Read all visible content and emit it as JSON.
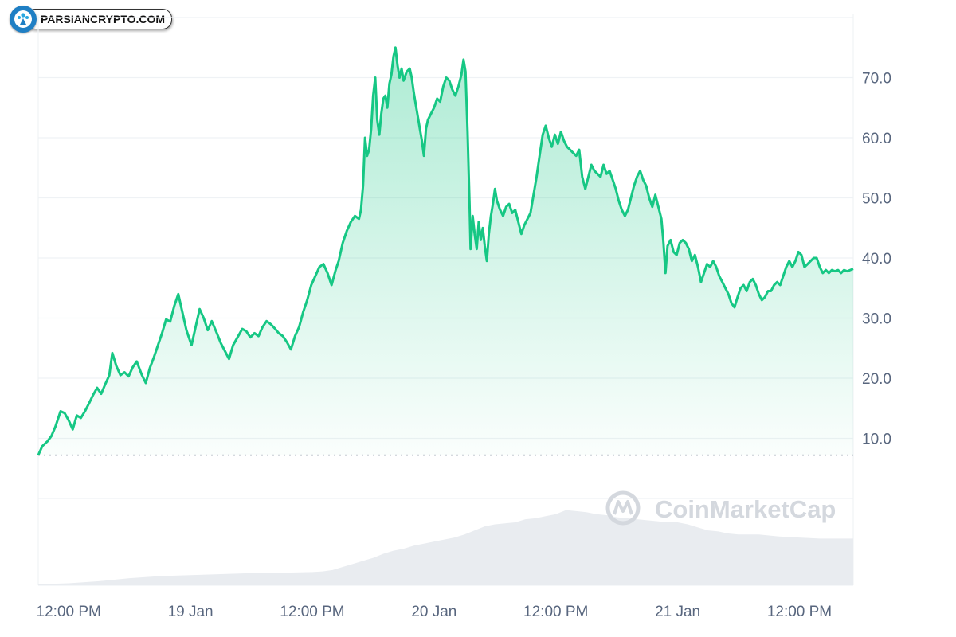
{
  "watermark": {
    "brand": "PARSIANCRYPTO.COM",
    "source": "CoinMarketCap"
  },
  "colors": {
    "line": "#16c784",
    "grid": "#eff2f5",
    "volume": "#e9ecf0",
    "baseline": "#909aa8",
    "text": "#58667e"
  },
  "chart_data": {
    "type": "area",
    "title": "",
    "xlabel": "",
    "ylabel": "",
    "ylim": [
      0,
      80
    ],
    "y_ticks": [
      "10.0",
      "20.0",
      "30.0",
      "40.0",
      "50.0",
      "60.0",
      "70.0"
    ],
    "x_ticks": [
      "12:00 PM",
      "19 Jan",
      "12:00 PM",
      "20 Jan",
      "12:00 PM",
      "21 Jan",
      "12:00 PM"
    ],
    "x_tick_hours": [
      12,
      24,
      36,
      48,
      60,
      72,
      84
    ],
    "x_range_hours": [
      9,
      89.3
    ],
    "baseline_value": 7.2,
    "grid": true,
    "series": [
      {
        "values": [
          [
            9.0,
            7.2
          ],
          [
            9.4,
            8.7
          ],
          [
            9.9,
            9.5
          ],
          [
            10.3,
            10.4
          ],
          [
            10.7,
            12.0
          ],
          [
            11.2,
            14.5
          ],
          [
            11.6,
            14.2
          ],
          [
            12.0,
            13.0
          ],
          [
            12.4,
            11.5
          ],
          [
            12.8,
            13.8
          ],
          [
            13.2,
            13.4
          ],
          [
            13.6,
            14.5
          ],
          [
            14.0,
            15.8
          ],
          [
            14.4,
            17.2
          ],
          [
            14.8,
            18.4
          ],
          [
            15.2,
            17.4
          ],
          [
            15.6,
            19.0
          ],
          [
            16.0,
            20.5
          ],
          [
            16.3,
            24.2
          ],
          [
            16.7,
            22.0
          ],
          [
            17.1,
            20.5
          ],
          [
            17.5,
            21.0
          ],
          [
            17.9,
            20.3
          ],
          [
            18.3,
            21.8
          ],
          [
            18.7,
            22.8
          ],
          [
            19.2,
            20.6
          ],
          [
            19.6,
            19.2
          ],
          [
            20.0,
            21.7
          ],
          [
            20.4,
            23.5
          ],
          [
            20.8,
            25.5
          ],
          [
            21.2,
            27.5
          ],
          [
            21.6,
            29.8
          ],
          [
            22.0,
            29.4
          ],
          [
            22.4,
            32.0
          ],
          [
            22.8,
            34.0
          ],
          [
            23.2,
            31.0
          ],
          [
            23.6,
            28.0
          ],
          [
            24.1,
            25.5
          ],
          [
            24.5,
            28.5
          ],
          [
            24.9,
            31.5
          ],
          [
            25.3,
            30.0
          ],
          [
            25.7,
            28.0
          ],
          [
            26.1,
            29.5
          ],
          [
            26.6,
            27.5
          ],
          [
            27.0,
            25.8
          ],
          [
            27.4,
            24.5
          ],
          [
            27.8,
            23.2
          ],
          [
            28.2,
            25.5
          ],
          [
            28.7,
            27.0
          ],
          [
            29.1,
            28.2
          ],
          [
            29.5,
            27.8
          ],
          [
            29.9,
            26.8
          ],
          [
            30.3,
            27.5
          ],
          [
            30.7,
            27.0
          ],
          [
            31.1,
            28.5
          ],
          [
            31.5,
            29.5
          ],
          [
            31.9,
            29.0
          ],
          [
            32.3,
            28.3
          ],
          [
            32.7,
            27.5
          ],
          [
            33.1,
            27.0
          ],
          [
            33.5,
            26.0
          ],
          [
            33.9,
            24.8
          ],
          [
            34.3,
            27.0
          ],
          [
            34.7,
            28.5
          ],
          [
            35.1,
            31.0
          ],
          [
            35.5,
            33.0
          ],
          [
            35.9,
            35.5
          ],
          [
            36.3,
            37.0
          ],
          [
            36.7,
            38.5
          ],
          [
            37.1,
            39.0
          ],
          [
            37.5,
            37.5
          ],
          [
            37.9,
            35.5
          ],
          [
            38.3,
            38.0
          ],
          [
            38.6,
            39.5
          ],
          [
            39.0,
            42.5
          ],
          [
            39.4,
            44.5
          ],
          [
            39.8,
            46.0
          ],
          [
            40.2,
            47.0
          ],
          [
            40.6,
            46.5
          ],
          [
            40.8,
            48.0
          ],
          [
            41.0,
            52.0
          ],
          [
            41.2,
            60.0
          ],
          [
            41.4,
            57.0
          ],
          [
            41.6,
            58.0
          ],
          [
            41.8,
            61.5
          ],
          [
            42.0,
            67.0
          ],
          [
            42.2,
            70.0
          ],
          [
            42.4,
            63.0
          ],
          [
            42.6,
            60.5
          ],
          [
            42.8,
            64.0
          ],
          [
            43.0,
            66.5
          ],
          [
            43.2,
            67.0
          ],
          [
            43.4,
            65.0
          ],
          [
            43.6,
            69.0
          ],
          [
            43.8,
            70.5
          ],
          [
            44.0,
            73.5
          ],
          [
            44.2,
            75.0
          ],
          [
            44.4,
            72.0
          ],
          [
            44.6,
            70.0
          ],
          [
            44.8,
            71.5
          ],
          [
            45.0,
            69.5
          ],
          [
            45.3,
            71.0
          ],
          [
            45.6,
            71.5
          ],
          [
            45.8,
            70.0
          ],
          [
            46.0,
            67.5
          ],
          [
            46.2,
            65.5
          ],
          [
            46.4,
            63.5
          ],
          [
            46.6,
            61.5
          ],
          [
            46.8,
            59.5
          ],
          [
            47.0,
            57.0
          ],
          [
            47.2,
            61.5
          ],
          [
            47.4,
            63.0
          ],
          [
            47.7,
            64.0
          ],
          [
            48.0,
            65.0
          ],
          [
            48.3,
            66.5
          ],
          [
            48.6,
            66.0
          ],
          [
            48.9,
            68.5
          ],
          [
            49.2,
            70.0
          ],
          [
            49.5,
            69.5
          ],
          [
            49.8,
            68.0
          ],
          [
            50.1,
            67.0
          ],
          [
            50.4,
            68.5
          ],
          [
            50.7,
            70.5
          ],
          [
            50.9,
            73.0
          ],
          [
            51.1,
            71.0
          ],
          [
            51.3,
            61.0
          ],
          [
            51.5,
            49.0
          ],
          [
            51.6,
            41.5
          ],
          [
            51.8,
            47.0
          ],
          [
            52.0,
            44.0
          ],
          [
            52.2,
            41.5
          ],
          [
            52.4,
            46.0
          ],
          [
            52.6,
            43.0
          ],
          [
            52.8,
            45.0
          ],
          [
            53.0,
            42.0
          ],
          [
            53.2,
            39.5
          ],
          [
            53.4,
            44.0
          ],
          [
            53.6,
            47.0
          ],
          [
            53.8,
            49.0
          ],
          [
            54.0,
            51.5
          ],
          [
            54.2,
            49.5
          ],
          [
            54.5,
            48.0
          ],
          [
            54.8,
            47.0
          ],
          [
            55.1,
            48.5
          ],
          [
            55.4,
            49.0
          ],
          [
            55.7,
            47.5
          ],
          [
            56.0,
            48.0
          ],
          [
            56.3,
            46.0
          ],
          [
            56.6,
            44.0
          ],
          [
            56.9,
            45.5
          ],
          [
            57.2,
            46.5
          ],
          [
            57.5,
            47.5
          ],
          [
            57.8,
            50.5
          ],
          [
            58.1,
            53.5
          ],
          [
            58.4,
            57.0
          ],
          [
            58.7,
            60.5
          ],
          [
            59.0,
            62.0
          ],
          [
            59.3,
            60.0
          ],
          [
            59.6,
            58.5
          ],
          [
            59.9,
            60.5
          ],
          [
            60.2,
            59.0
          ],
          [
            60.5,
            61.0
          ],
          [
            60.8,
            59.5
          ],
          [
            61.1,
            58.5
          ],
          [
            61.4,
            58.0
          ],
          [
            61.7,
            57.5
          ],
          [
            62.0,
            57.0
          ],
          [
            62.3,
            58.0
          ],
          [
            62.6,
            53.5
          ],
          [
            62.9,
            51.5
          ],
          [
            63.2,
            53.5
          ],
          [
            63.5,
            55.5
          ],
          [
            63.8,
            54.5
          ],
          [
            64.1,
            54.0
          ],
          [
            64.4,
            53.5
          ],
          [
            64.7,
            55.5
          ],
          [
            65.0,
            54.0
          ],
          [
            65.3,
            54.5
          ],
          [
            65.6,
            53.0
          ],
          [
            65.9,
            51.5
          ],
          [
            66.2,
            49.5
          ],
          [
            66.5,
            48.0
          ],
          [
            66.8,
            47.0
          ],
          [
            67.1,
            48.0
          ],
          [
            67.4,
            50.0
          ],
          [
            67.7,
            52.0
          ],
          [
            68.0,
            53.5
          ],
          [
            68.3,
            54.5
          ],
          [
            68.6,
            53.0
          ],
          [
            68.9,
            52.0
          ],
          [
            69.2,
            50.0
          ],
          [
            69.5,
            48.5
          ],
          [
            69.8,
            50.5
          ],
          [
            70.1,
            48.5
          ],
          [
            70.4,
            46.5
          ],
          [
            70.6,
            42.5
          ],
          [
            70.8,
            37.5
          ],
          [
            71.0,
            42.0
          ],
          [
            71.3,
            43.0
          ],
          [
            71.6,
            41.0
          ],
          [
            71.9,
            40.5
          ],
          [
            72.2,
            42.5
          ],
          [
            72.5,
            43.0
          ],
          [
            72.8,
            42.5
          ],
          [
            73.1,
            41.5
          ],
          [
            73.4,
            39.5
          ],
          [
            73.7,
            40.5
          ],
          [
            74.0,
            38.5
          ],
          [
            74.3,
            36.0
          ],
          [
            74.6,
            37.5
          ],
          [
            74.9,
            39.0
          ],
          [
            75.2,
            38.5
          ],
          [
            75.5,
            39.5
          ],
          [
            75.8,
            38.5
          ],
          [
            76.1,
            37.0
          ],
          [
            76.4,
            36.0
          ],
          [
            76.7,
            35.0
          ],
          [
            77.0,
            34.0
          ],
          [
            77.3,
            32.5
          ],
          [
            77.6,
            31.8
          ],
          [
            77.9,
            33.5
          ],
          [
            78.2,
            35.0
          ],
          [
            78.5,
            35.5
          ],
          [
            78.8,
            34.5
          ],
          [
            79.1,
            36.0
          ],
          [
            79.4,
            36.5
          ],
          [
            79.7,
            35.5
          ],
          [
            80.0,
            34.0
          ],
          [
            80.3,
            33.0
          ],
          [
            80.6,
            33.5
          ],
          [
            80.9,
            34.5
          ],
          [
            81.2,
            34.5
          ],
          [
            81.5,
            35.5
          ],
          [
            81.8,
            36.0
          ],
          [
            82.1,
            35.5
          ],
          [
            82.4,
            37.0
          ],
          [
            82.7,
            38.5
          ],
          [
            83.0,
            39.5
          ],
          [
            83.3,
            38.5
          ],
          [
            83.6,
            39.5
          ],
          [
            83.9,
            41.0
          ],
          [
            84.2,
            40.5
          ],
          [
            84.5,
            38.5
          ],
          [
            84.8,
            39.0
          ],
          [
            85.1,
            39.5
          ],
          [
            85.4,
            40.0
          ],
          [
            85.7,
            40.0
          ],
          [
            86.0,
            38.5
          ],
          [
            86.3,
            37.5
          ],
          [
            86.6,
            38.0
          ],
          [
            86.9,
            37.5
          ],
          [
            87.2,
            38.0
          ],
          [
            87.5,
            37.8
          ],
          [
            87.8,
            38.0
          ],
          [
            88.1,
            37.5
          ],
          [
            88.4,
            38.0
          ],
          [
            88.7,
            37.8
          ],
          [
            89.0,
            38.0
          ],
          [
            89.3,
            38.2
          ]
        ]
      }
    ],
    "volume": {
      "x": [
        9,
        12,
        15,
        18,
        21,
        24,
        27,
        30,
        33,
        36,
        37,
        38,
        39,
        40,
        41,
        42,
        43,
        44,
        45,
        46,
        47,
        48,
        49,
        50,
        51,
        52,
        53,
        54,
        55,
        56,
        57,
        58,
        59,
        60,
        61,
        62,
        63,
        64,
        65,
        66,
        67,
        68,
        69,
        70,
        71,
        72,
        73,
        74,
        75,
        76,
        77,
        78,
        80,
        82,
        84,
        86,
        88,
        89.3
      ],
      "values": [
        0.5,
        1,
        2,
        3.5,
        4.5,
        5,
        5.5,
        6,
        6.2,
        6.5,
        6.8,
        7.5,
        9,
        10.5,
        12,
        13.5,
        15.5,
        17,
        18,
        19.5,
        20.5,
        21.5,
        22.5,
        23.5,
        25,
        27,
        29,
        30,
        30.5,
        31,
        32.5,
        33,
        34,
        35,
        37,
        36.5,
        36,
        35,
        34.5,
        33.5,
        33,
        32.5,
        32,
        31.5,
        31,
        31,
        30,
        28.5,
        27,
        26.5,
        25.5,
        25,
        25,
        24,
        23.5,
        23,
        23,
        23
      ]
    }
  }
}
